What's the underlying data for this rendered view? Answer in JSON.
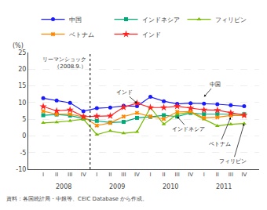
{
  "chart_data": {
    "type": "line",
    "y_label": "(%)",
    "source": "資料：各国統計局・中銀等、CEIC Database から作成。",
    "categories": [
      "I",
      "II",
      "III",
      "IV",
      "I",
      "II",
      "III",
      "IV",
      "I",
      "II",
      "III",
      "IV",
      "I",
      "II",
      "III",
      "IV"
    ],
    "x_group_labels": [
      {
        "text": "2008",
        "x": 1.5
      },
      {
        "text": "2009",
        "x": 5.5
      },
      {
        "text": "2010",
        "x": 9.5
      },
      {
        "text": "2011",
        "x": 13.5
      }
    ],
    "series": [
      {
        "name": "中国",
        "color": "#1a1aff",
        "marker": "circle",
        "values": [
          11.3,
          10.6,
          9.9,
          7.4,
          8.3,
          8.5,
          9.0,
          8.9,
          11.7,
          10.4,
          9.6,
          9.8,
          9.7,
          9.5,
          9.2,
          8.9
        ]
      },
      {
        "name": "インドネシア",
        "color": "#00aa77",
        "marker": "square",
        "values": [
          6.2,
          6.4,
          6.1,
          5.2,
          4.5,
          4.0,
          4.2,
          5.4,
          5.7,
          6.2,
          5.8,
          6.9,
          6.5,
          6.5,
          6.5,
          6.5
        ]
      },
      {
        "name": "フィリピン",
        "color": "#77bb00",
        "marker": "triangle-up",
        "values": [
          3.9,
          4.1,
          4.5,
          5.0,
          0.4,
          1.5,
          0.8,
          1.2,
          8.5,
          3.5,
          6.5,
          7.1,
          5.0,
          3.0,
          3.5,
          3.7
        ]
      },
      {
        "name": "ベトナム",
        "color": "#ff8800",
        "marker": "x",
        "values": [
          7.4,
          6.5,
          6.5,
          5.7,
          3.1,
          3.9,
          5.8,
          6.9,
          5.8,
          5.1,
          7.2,
          7.3,
          5.4,
          5.6,
          6.1,
          6.1
        ]
      },
      {
        "name": "インド",
        "color": "#ff2222",
        "marker": "star",
        "values": [
          8.8,
          7.5,
          7.8,
          5.8,
          5.9,
          6.0,
          8.6,
          9.8,
          8.5,
          8.5,
          8.9,
          8.3,
          7.8,
          7.7,
          6.9,
          6.2
        ]
      }
    ],
    "vline": {
      "x": 3.5,
      "label": "リーマンショック\n（2008.9.）",
      "line_style": "dotted"
    },
    "annotations": [
      {
        "text": "中国",
        "x": 12,
        "y": 11.7
      },
      {
        "text": "インド",
        "x": 7,
        "y": 9.8
      },
      {
        "text": "インドネシア",
        "x": 10,
        "y": 5.8
      },
      {
        "text": "ベトナム",
        "x": 14,
        "y": 5.6
      },
      {
        "text": "フィリピン",
        "x": 15,
        "y": 3.7
      }
    ],
    "ylim": [
      -10,
      25
    ],
    "yticks": [
      -10,
      -5,
      0,
      5,
      10,
      15,
      20,
      25
    ],
    "grid": true,
    "legend": "top"
  }
}
